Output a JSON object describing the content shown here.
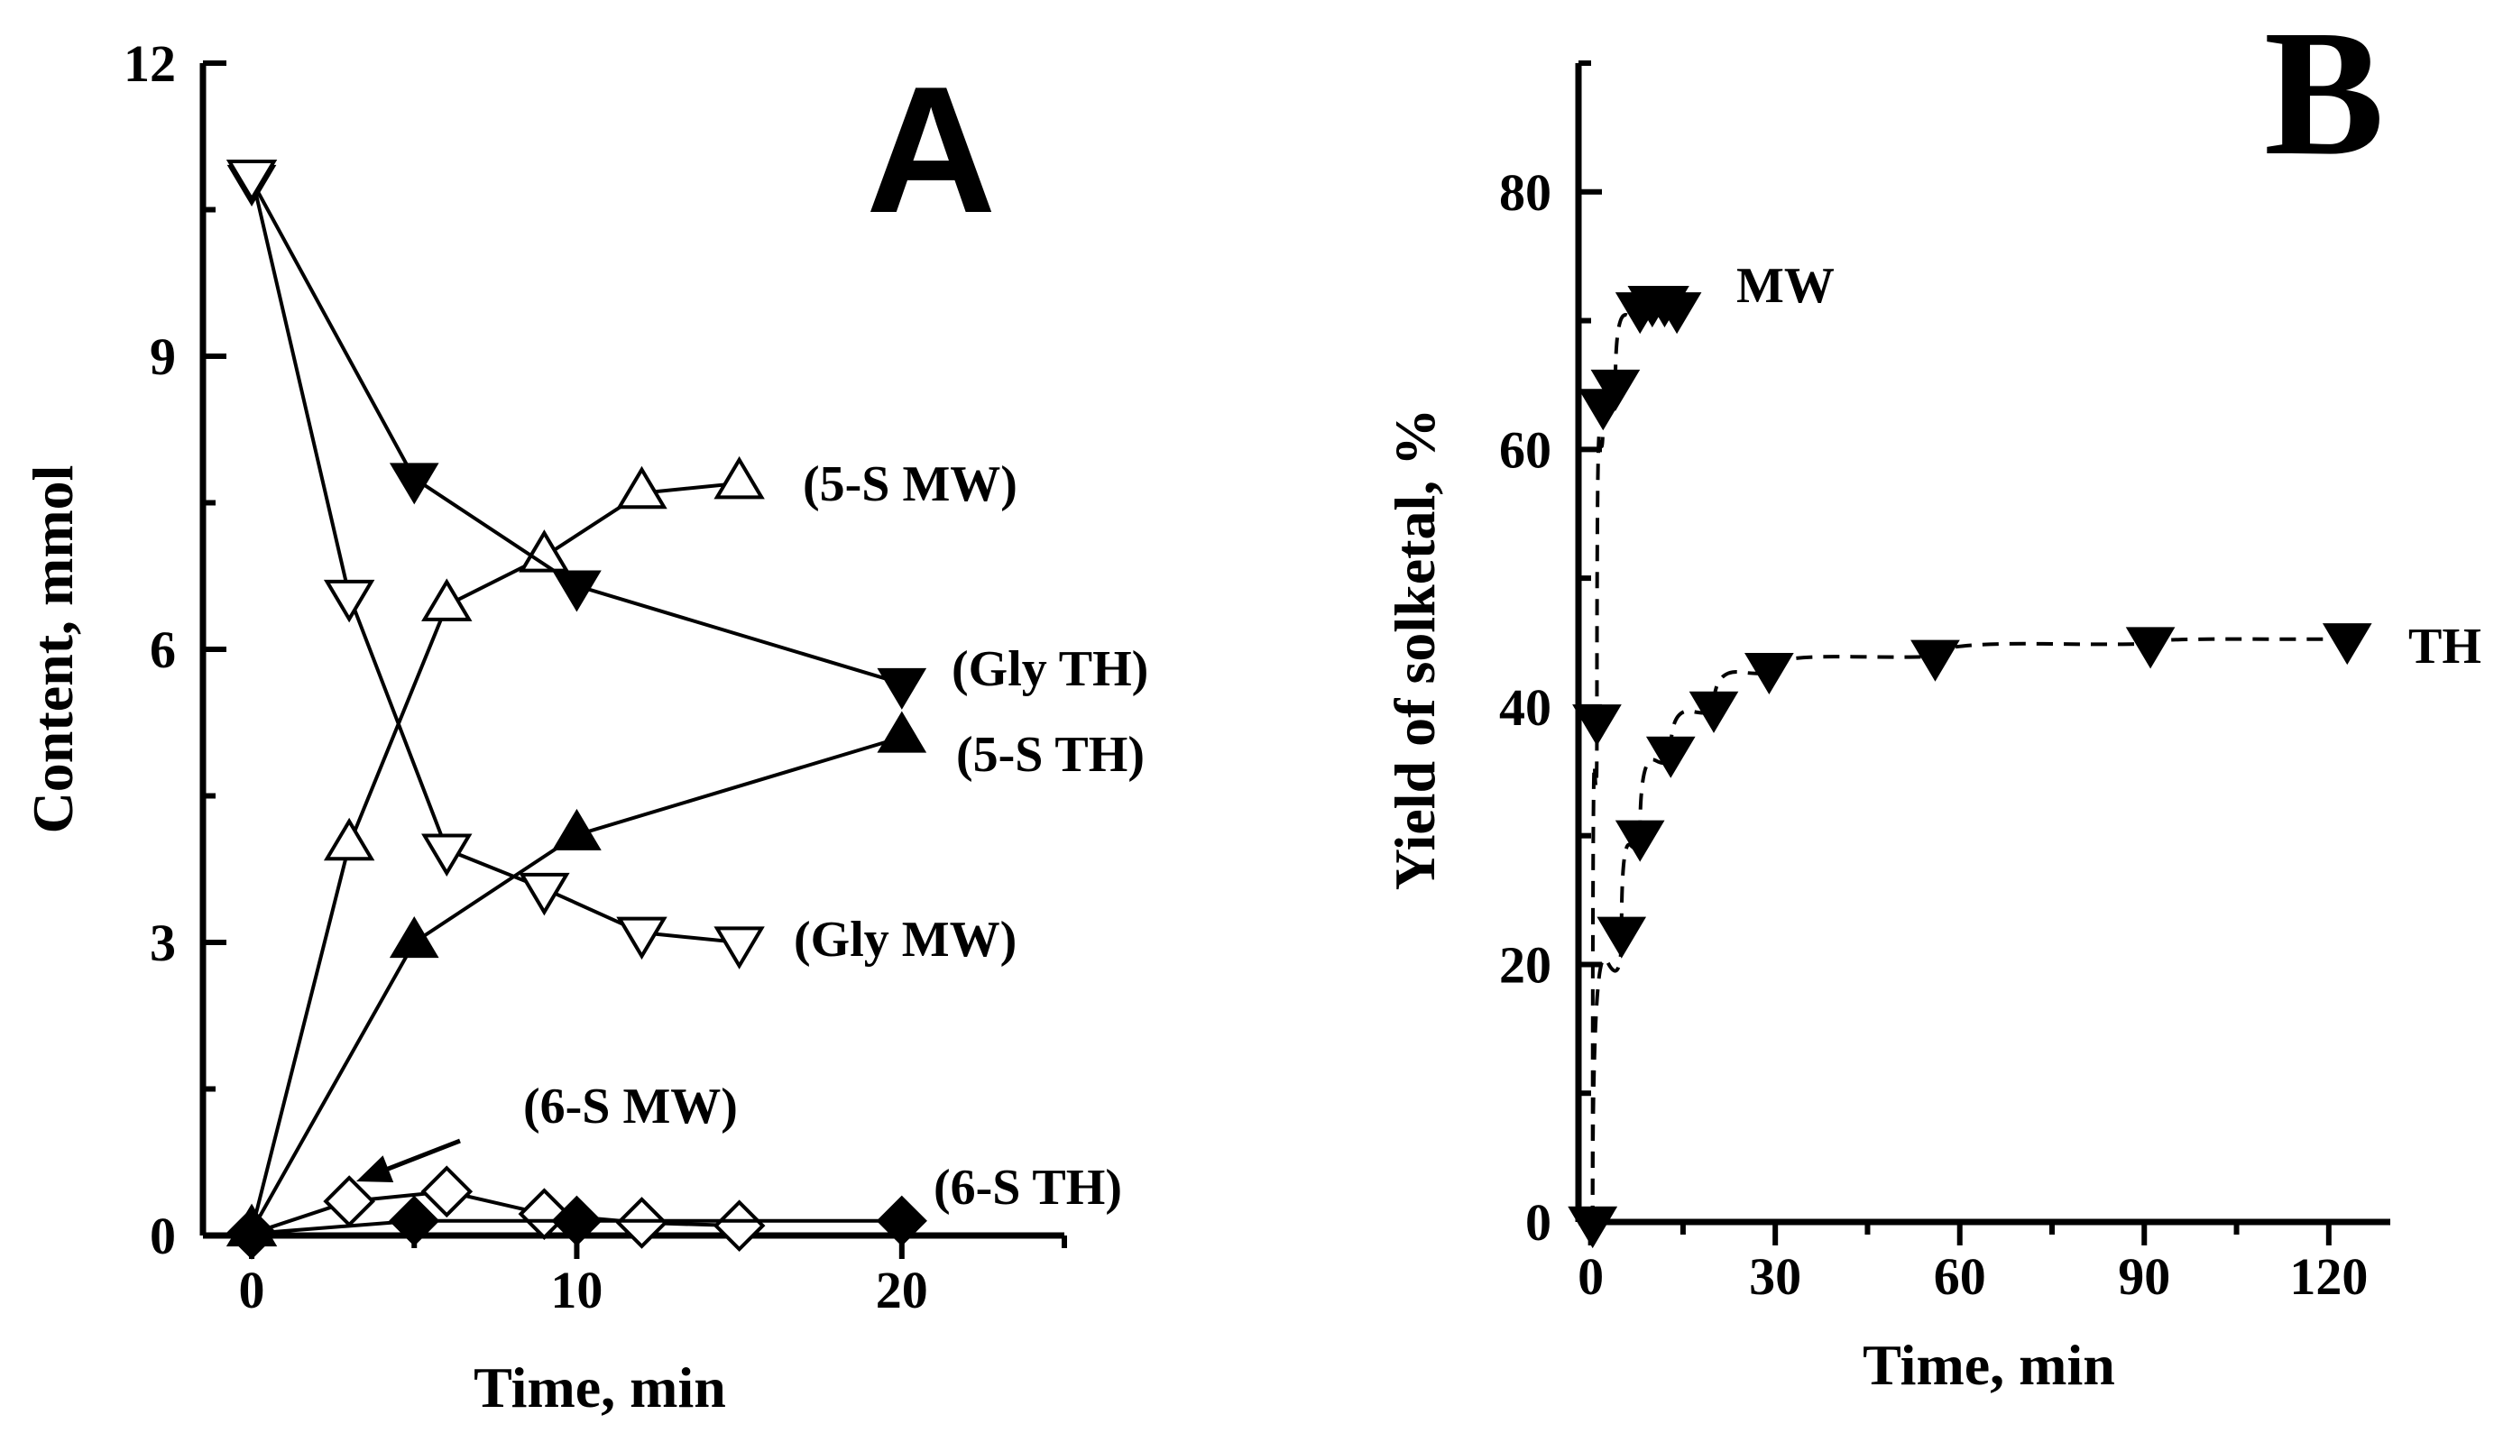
{
  "chart_data": [
    {
      "type": "line",
      "panel": "A",
      "xlabel": "Time, min",
      "ylabel": "Content, mmol",
      "xlim": [
        -1.5,
        25
      ],
      "ylim": [
        0,
        12
      ],
      "xticks": [
        0,
        10,
        20
      ],
      "yticks": [
        0,
        3,
        6,
        9,
        12
      ],
      "series": [
        {
          "name": "(5-S MW)",
          "marker": "triangle-up",
          "filled": false,
          "x": [
            0,
            3,
            6,
            9,
            12,
            15
          ],
          "y": [
            0.05,
            4.0,
            6.45,
            6.95,
            7.6,
            7.7
          ]
        },
        {
          "name": "(Gly TH)",
          "marker": "triangle-down",
          "filled": true,
          "x": [
            0,
            5,
            10,
            20
          ],
          "y": [
            10.8,
            7.75,
            6.65,
            5.65
          ]
        },
        {
          "name": "(5-S TH)",
          "marker": "triangle-up",
          "filled": true,
          "x": [
            0,
            5,
            10,
            20
          ],
          "y": [
            0.05,
            3.0,
            4.1,
            5.1
          ]
        },
        {
          "name": "(Gly MW)",
          "marker": "triangle-down",
          "filled": false,
          "x": [
            0,
            3,
            6,
            9,
            12,
            15
          ],
          "y": [
            10.85,
            6.55,
            3.95,
            3.55,
            3.1,
            3.0
          ]
        },
        {
          "name": "(6-S MW)",
          "marker": "diamond",
          "filled": false,
          "x": [
            0,
            3,
            6,
            9,
            12,
            15
          ],
          "y": [
            0.02,
            0.35,
            0.45,
            0.22,
            0.13,
            0.1
          ]
        },
        {
          "name": "(6-S TH)",
          "marker": "diamond",
          "filled": true,
          "x": [
            0,
            5,
            10,
            20
          ],
          "y": [
            0.02,
            0.15,
            0.15,
            0.15
          ]
        }
      ]
    },
    {
      "type": "scatter",
      "panel": "B",
      "xlabel": "Time, min",
      "ylabel": "Yield of solketal, %",
      "xlim": [
        -2,
        130
      ],
      "ylim": [
        0,
        90
      ],
      "xticks": [
        0,
        30,
        60,
        90,
        120
      ],
      "yticks": [
        0,
        20,
        40,
        60,
        80
      ],
      "series": [
        {
          "name": "MW",
          "marker": "triangle-down",
          "filled": true,
          "fit": "dashed",
          "x": [
            0.3,
            1,
            2,
            4,
            8,
            10,
            12,
            14
          ],
          "y": [
            0,
            39,
            63.5,
            65,
            71,
            71.5,
            71.5,
            71
          ]
        },
        {
          "name": "TH",
          "marker": "triangle-down",
          "filled": true,
          "fit": "dashed",
          "x": [
            0.3,
            5,
            8,
            13,
            20,
            29,
            56,
            91,
            123
          ],
          "y": [
            0,
            22.5,
            30,
            36.5,
            40,
            43,
            44,
            45,
            45.3
          ]
        }
      ]
    }
  ]
}
